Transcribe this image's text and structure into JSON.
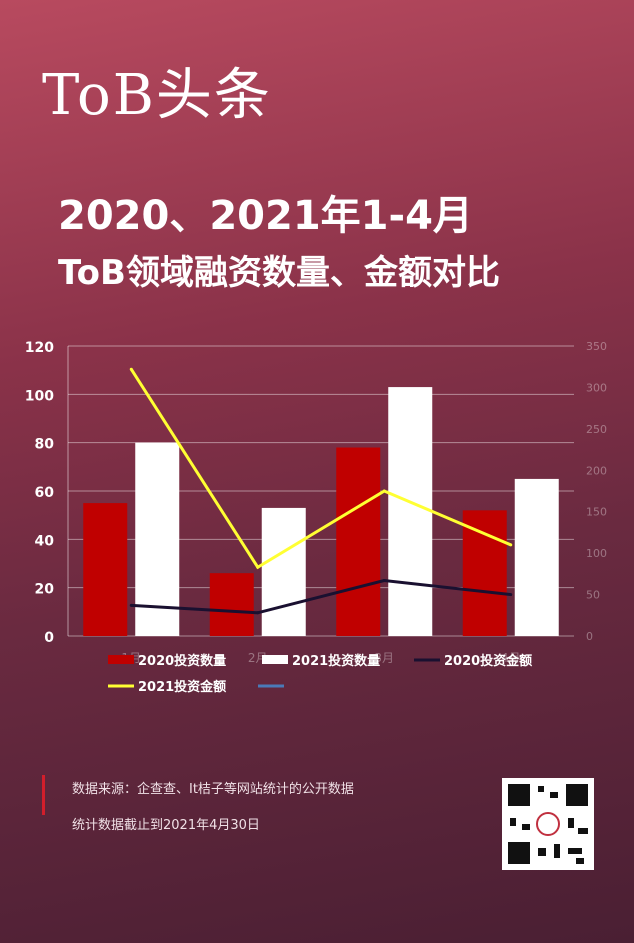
{
  "logo": "ToB头条",
  "title_line1": "2020、2021年1-4月",
  "title_line2": "ToB领域融资数量、金额对比",
  "footer": {
    "source": "数据来源：企查查、It桔子等网站统计的公开数据",
    "cutoff": "统计数据截止到2021年4月30日"
  },
  "colors": {
    "bar2020": "#c00000",
    "bar2021": "#ffffff",
    "line2020": "#1a1030",
    "line2021": "#ffff33",
    "extra": "#4a7ab8"
  },
  "chart_data": {
    "type": "bar+line",
    "categories": [
      "1月",
      "2月",
      "3月",
      "4月"
    ],
    "left_ticks": [
      "0",
      "20",
      "40",
      "60",
      "80",
      "100",
      "120"
    ],
    "right_ticks": [
      "0",
      "50",
      "100",
      "150",
      "200",
      "250",
      "300",
      "350"
    ],
    "ylim_left": [
      0,
      120
    ],
    "ylim_right": [
      0,
      350
    ],
    "bars": [
      {
        "name": "2020投资数量",
        "values": [
          55,
          26,
          78,
          52
        ]
      },
      {
        "name": "2021投资数量",
        "values": [
          80,
          53,
          103,
          65
        ]
      }
    ],
    "lines": [
      {
        "name": "2020投资金额",
        "values": [
          37,
          28,
          67,
          50
        ]
      },
      {
        "name": "2021投资金额",
        "values": [
          322,
          83,
          175,
          110
        ]
      }
    ],
    "legend": [
      "2020投资数量",
      "2021投资数量",
      "2020投资金额",
      "2021投资金额",
      ""
    ],
    "grid": true
  }
}
